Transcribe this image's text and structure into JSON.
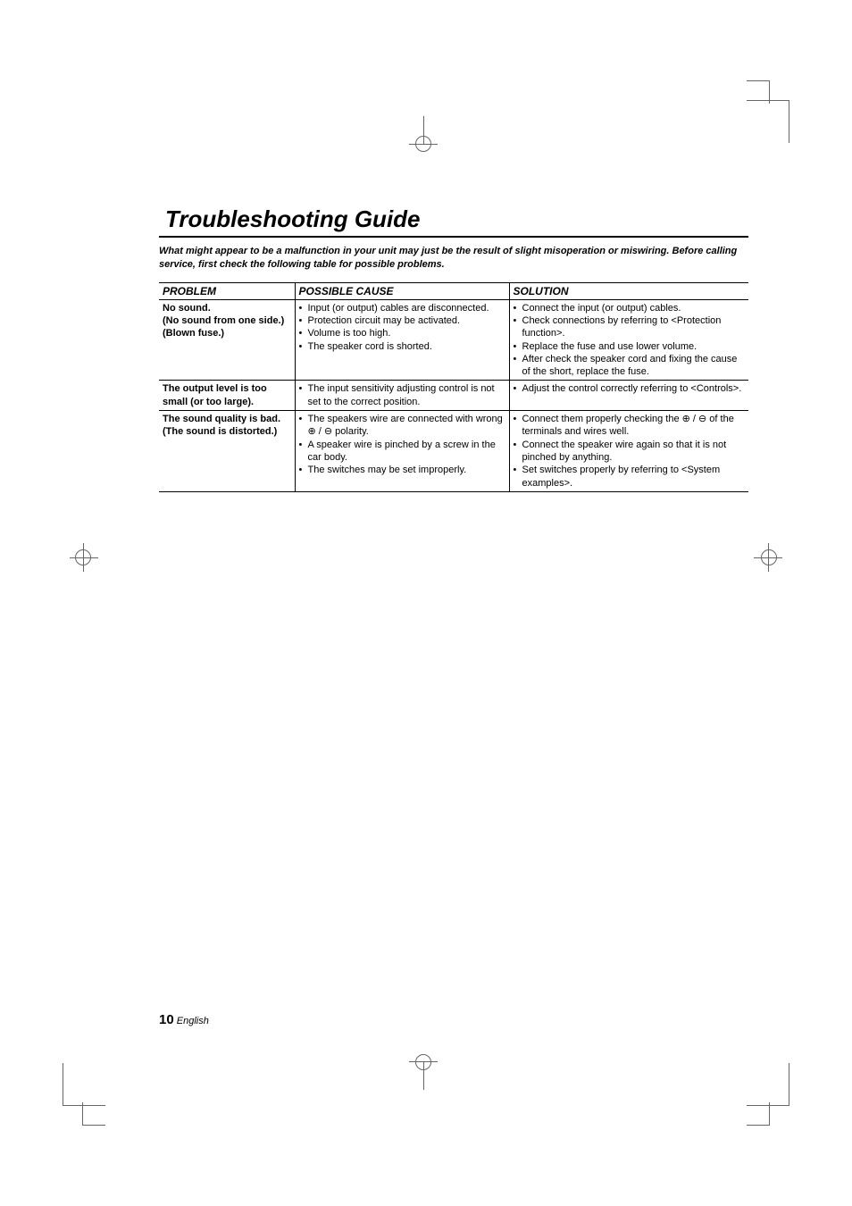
{
  "title": "Troubleshooting Guide",
  "intro": "What might appear to be a malfunction in your unit may just be the result of slight misoperation or miswiring. Before calling service, first check the following table for possible problems.",
  "headers": {
    "problem": "PROBLEM",
    "cause": "POSSIBLE CAUSE",
    "solution": "SOLUTION"
  },
  "rows": [
    {
      "problem": "No sound.\n(No sound from one side.)\n(Blown fuse.)",
      "causes": [
        "Input (or output) cables are disconnected.",
        "Protection circuit may be activated.",
        "Volume is too high.",
        "The speaker cord is shorted."
      ],
      "solutions": [
        "Connect the input (or output) cables.",
        "Check connections by referring to <Protection function>.",
        "Replace the fuse and use lower volume.",
        "After check the speaker cord and fixing the cause of the short, replace the fuse."
      ]
    },
    {
      "problem": "The output level is too small (or too large).",
      "causes": [
        "The input sensitivity adjusting control is not set to the correct position."
      ],
      "solutions": [
        "Adjust the control correctly referring to <Controls>."
      ]
    },
    {
      "problem": "The sound quality is bad.\n(The sound is distorted.)",
      "causes": [
        "The speakers wire are connected with wrong ⊕ / ⊖ polarity.",
        "A speaker wire is pinched by a screw in the car body.",
        "The switches may be set improperly."
      ],
      "solutions": [
        "Connect them properly checking the ⊕ / ⊖ of the terminals and wires well.",
        "Connect the speaker wire again so that it is not pinched by anything.",
        "Set switches properly by referring to <System examples>."
      ]
    }
  ],
  "footer": {
    "pageNum": "10",
    "lang": "English"
  }
}
